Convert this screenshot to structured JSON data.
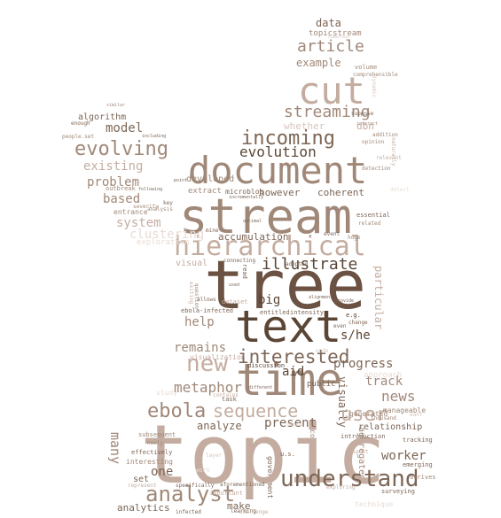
{
  "colors": {
    "darkest": "#5b4636",
    "dark": "#7d6656",
    "mid": "#a08878",
    "light": "#c4ada0",
    "lighter": "#d8c6bb",
    "faint": "#e8dcd4"
  },
  "words": {
    "topic": "topic",
    "tree": "tree",
    "stream": "stream",
    "text": "text",
    "document": "document",
    "cut": "cut",
    "time": "time",
    "hierarchical": "hierarchical",
    "understand": "understand",
    "incoming": "incoming",
    "evolving": "evolving",
    "analyst": "analyst",
    "interested": "interested",
    "new": "new",
    "user": "user",
    "sequence": "sequence",
    "ebola": "ebola",
    "evolution": "evolution",
    "article": "article",
    "streaming": "streaming",
    "illustrate": "illustrate",
    "metaphor": "metaphor",
    "news": "news",
    "worker": "worker",
    "model": "model",
    "existing": "existing",
    "problem": "problem",
    "based": "based",
    "system": "system",
    "help": "help",
    "remains": "remains",
    "progress": "progress",
    "track": "track",
    "analyze": "analyze",
    "present": "present",
    "big": "big",
    "aid": "aid",
    "s_he": "s/he",
    "example": "example",
    "data": "data",
    "however": "however",
    "coherent": "coherent",
    "accumulation": "accumulation",
    "developed": "developed",
    "algorithm": "algorithm",
    "topicstream": "topicstream",
    "one": "one",
    "make": "make",
    "analytics": "analytics",
    "set": "set",
    "many": "many",
    "visually": "visually",
    "visual": "visual",
    "extract": "extract",
    "outbreak": "outbreak",
    "entrance": "entrance",
    "whether": "whether",
    "dbn": "dbn",
    "microblog": "microblog",
    "relationship": "relationship",
    "aggregated": "aggregated",
    "public": "public",
    "discussion": "discussion",
    "volume": "volume",
    "visualization": "visualization",
    "ebola_infected": "ebola-infected",
    "intensity": "intensity",
    "generated": "generated",
    "manageable": "manageable",
    "thousand": "thousand",
    "interesting": "interesting",
    "effectively": "effectively",
    "subsequent": "subsequent",
    "government": "government",
    "compactitem": "compactitem",
    "introduction": "introduction",
    "tracking": "tracking",
    "emerging": "emerging",
    "arrives": "arrives",
    "surveying": "surveying",
    "learning": "learning",
    "challenge": "challenge",
    "infected": "infected",
    "specifically": "specifically",
    "important": "important",
    "represent": "represent",
    "aforementioned": "aforementioned",
    "adopted": "adopted",
    "essential": "essential",
    "related": "related",
    "huge": "huge",
    "event": "event",
    "mine": "mine",
    "entitled": "entitled",
    "connecting": "connecting",
    "even": "even",
    "change": "change",
    "eg": "e.g.",
    "question": "question",
    "dataset": "dataset",
    "exiting": "exiting",
    "severity": "severity",
    "analysis": "analysis",
    "key": "key",
    "people_set": "people.set",
    "enough": "enough",
    "similar": "similar",
    "including": "including",
    "comprehensible": "comprehensible",
    "opinion": "opinion",
    "addition": "addition",
    "relevant": "relevant",
    "detection": "detection",
    "suppose": "suppose",
    "interact": "interact",
    "naturally": "naturally",
    "particular": "particular",
    "task": "task",
    "different": "different",
    "contains": "contains",
    "point": "point",
    "following": "following",
    "allows": "allows",
    "alignment": "alignment",
    "optimal": "optimal",
    "used": "used",
    "read": "read",
    "provide": "provide",
    "newly": "newly",
    "aspect": "aspect",
    "exploring": "exploring",
    "want": "want",
    "incrementally": "incrementally",
    "dynamic": "dynamic",
    "numerous": "numerous",
    "us": "u.s.",
    "detect": "detect",
    "layer": "layer",
    "study": "study",
    "node": "node",
    "technique": "technique",
    "work": "work",
    "approach": "approach",
    "people": "people",
    "clustering": "clustering",
    "exploration": "exploration"
  }
}
